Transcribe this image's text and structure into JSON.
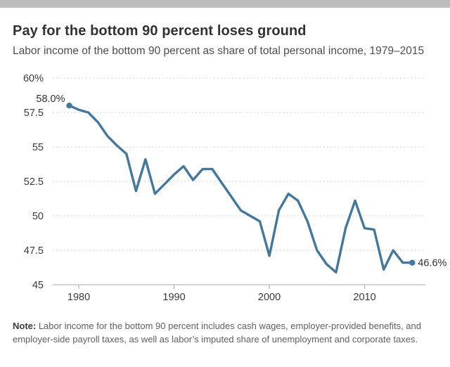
{
  "header": {
    "title": "Pay for the bottom 90 percent loses ground",
    "subtitle": "Labor income of the bottom 90 percent as share of total personal income, 1979–2015"
  },
  "chart_data": {
    "type": "line",
    "series_name": "Labor income of the bottom 90 percent as share of total personal income",
    "x": [
      1979,
      1980,
      1981,
      1982,
      1983,
      1984,
      1985,
      1986,
      1987,
      1988,
      1989,
      1990,
      1991,
      1992,
      1993,
      1994,
      1995,
      1996,
      1997,
      1998,
      1999,
      2000,
      2001,
      2002,
      2003,
      2004,
      2005,
      2006,
      2007,
      2008,
      2009,
      2010,
      2011,
      2012,
      2013,
      2014,
      2015
    ],
    "values": [
      58.0,
      57.7,
      57.5,
      56.8,
      55.8,
      55.1,
      54.5,
      51.8,
      54.1,
      51.6,
      52.3,
      53.0,
      53.6,
      52.6,
      53.4,
      53.4,
      52.4,
      51.4,
      50.4,
      50.0,
      49.6,
      47.1,
      50.4,
      51.6,
      51.1,
      49.6,
      47.5,
      46.5,
      45.9,
      49.1,
      51.1,
      49.1,
      49.0,
      46.1,
      47.5,
      46.6,
      46.6
    ],
    "xlim": [
      1979,
      2015
    ],
    "ylim": [
      45,
      60
    ],
    "yticks": [
      45,
      47.5,
      50,
      52.5,
      55,
      57.5,
      60
    ],
    "ytick_labels": [
      "45",
      "47.5",
      "50",
      "52.5",
      "55",
      "57.5",
      "60%"
    ],
    "xticks": [
      1980,
      1990,
      2000,
      2010
    ],
    "grid": "horizontal-dotted",
    "legend": "none",
    "line_color": "#44779e",
    "annotations": [
      {
        "x": 1979,
        "y": 58.0,
        "label": "58.0%"
      },
      {
        "x": 2015,
        "y": 46.6,
        "label": "46.6%"
      }
    ]
  },
  "note": {
    "label": "Note:",
    "text": " Labor income for the bottom 90 percent includes cash wages, employer-provided benefits, and employer-side payroll taxes, as well as labor’s imputed share of unemployment and corporate taxes."
  }
}
